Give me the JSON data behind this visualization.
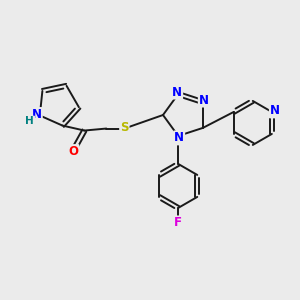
{
  "bg_color": "#ebebeb",
  "bond_color": "#1a1a1a",
  "atom_colors": {
    "N": "#0000ff",
    "O": "#ff0000",
    "S": "#b8b800",
    "F": "#dd00dd",
    "H_label": "#008080",
    "C": "#1a1a1a"
  },
  "font_size": 8.5,
  "lw": 1.4
}
